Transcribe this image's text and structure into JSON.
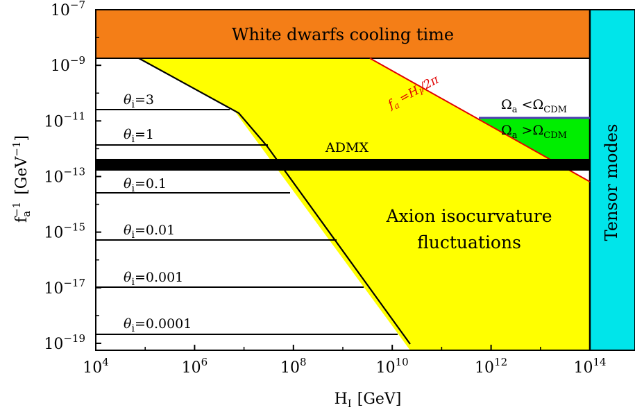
{
  "chart_data": {
    "type": "area",
    "x_axis": {
      "label_main": "H",
      "label_sub": "I",
      "label_unit": "[GeV]",
      "scale": "log",
      "range_exp": [
        4,
        14.45
      ],
      "ticks": [
        {
          "base": "10",
          "exp": "4",
          "value_exp": 4
        },
        {
          "base": "10",
          "exp": "6",
          "value_exp": 6
        },
        {
          "base": "10",
          "exp": "8",
          "value_exp": 8
        },
        {
          "base": "10",
          "exp": "10",
          "value_exp": 10
        },
        {
          "base": "10",
          "exp": "12",
          "value_exp": 12
        },
        {
          "base": "10",
          "exp": "14",
          "value_exp": 14
        }
      ]
    },
    "y_axis": {
      "label_main": "f",
      "label_sub": "a",
      "label_sup": "−1",
      "label_unit": "[GeV",
      "label_unit_sup": "−1",
      "label_unit_close": "]",
      "scale": "log",
      "range_exp": [
        -19.25,
        -7
      ],
      "ticks": [
        {
          "base": "10",
          "exp": "−7",
          "value_exp": -7
        },
        {
          "base": "10",
          "exp": "−9",
          "value_exp": -9
        },
        {
          "base": "10",
          "exp": "−11",
          "value_exp": -11
        },
        {
          "base": "10",
          "exp": "−13",
          "value_exp": -13
        },
        {
          "base": "10",
          "exp": "−15",
          "value_exp": -15
        },
        {
          "base": "10",
          "exp": "−17",
          "value_exp": -17
        },
        {
          "base": "10",
          "exp": "−19",
          "value_exp": -19
        }
      ]
    },
    "regions": {
      "white_dwarfs": {
        "label": "White dwarfs cooling time",
        "color": "#f47e17",
        "y_exp_range": [
          -8.9,
          -7
        ]
      },
      "tensor_modes": {
        "label": "Tensor modes",
        "color": "#00e5ea",
        "x_exp_min": 13.95
      },
      "isocurvature": {
        "label_line1": "Axion isocurvature",
        "label_line2": "fluctuations",
        "color": "#ffff00"
      },
      "admx": {
        "label": "ADMX",
        "color": "#000000",
        "y_exp_range": [
          -12.65,
          -12.25
        ]
      },
      "omega_over": {
        "label_main": "Ω",
        "label_sub1": "a",
        "label_op": " >Ω",
        "label_sub2": "CDM",
        "color": "#00ee00"
      },
      "omega_under": {
        "label_main": "Ω",
        "label_sub1": "a",
        "label_op": " <Ω",
        "label_sub2": "CDM"
      }
    },
    "fa_line": {
      "label": "f",
      "label_sub": "a",
      "label_rest": " =H",
      "label_sub2": "I",
      "label_end": "/2π",
      "color": "#e00000"
    },
    "theta_lines": [
      {
        "symbol": "θ",
        "sub": "i",
        "value": "=3",
        "y_exp": -10.65
      },
      {
        "symbol": "θ",
        "sub": "i",
        "value": "=1",
        "y_exp": -11.8
      },
      {
        "symbol": "θ",
        "sub": "i",
        "value": "=0.1",
        "y_exp": -13.45
      },
      {
        "symbol": "θ",
        "sub": "i",
        "value": "=0.01",
        "y_exp": -15.15
      },
      {
        "symbol": "θ",
        "sub": "i",
        "value": "=0.001",
        "y_exp": -16.8
      },
      {
        "symbol": "θ",
        "sub": "i",
        "value": "=0.0001",
        "y_exp": -18.45
      }
    ]
  }
}
